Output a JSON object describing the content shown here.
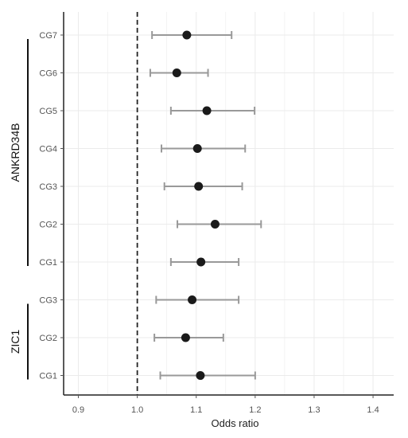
{
  "chart_data": {
    "type": "forest",
    "xlabel": "Odds ratio",
    "xlim": [
      0.875,
      1.435
    ],
    "xticks": [
      "0.9",
      "1.0",
      "1.1",
      "1.2",
      "1.3",
      "1.4"
    ],
    "xtick_values": [
      0.9,
      1.0,
      1.1,
      1.2,
      1.3,
      1.4
    ],
    "reference_line": 1.0,
    "grid": true,
    "rows": [
      {
        "label": "CG7",
        "group": "ANKRD34B",
        "or": 1.084,
        "lower": 1.025,
        "upper": 1.16
      },
      {
        "label": "CG6",
        "group": "ANKRD34B",
        "or": 1.067,
        "lower": 1.022,
        "upper": 1.12
      },
      {
        "label": "CG5",
        "group": "ANKRD34B",
        "or": 1.118,
        "lower": 1.057,
        "upper": 1.199
      },
      {
        "label": "CG4",
        "group": "ANKRD34B",
        "or": 1.102,
        "lower": 1.041,
        "upper": 1.183
      },
      {
        "label": "CG3",
        "group": "ANKRD34B",
        "or": 1.104,
        "lower": 1.046,
        "upper": 1.178
      },
      {
        "label": "CG2",
        "group": "ANKRD34B",
        "or": 1.132,
        "lower": 1.068,
        "upper": 1.21
      },
      {
        "label": "CG1",
        "group": "ANKRD34B",
        "or": 1.108,
        "lower": 1.057,
        "upper": 1.172
      },
      {
        "label": "CG3",
        "group": "ZIC1",
        "or": 1.093,
        "lower": 1.032,
        "upper": 1.172
      },
      {
        "label": "CG2",
        "group": "ZIC1",
        "or": 1.082,
        "lower": 1.029,
        "upper": 1.146
      },
      {
        "label": "CG1",
        "group": "ZIC1",
        "or": 1.107,
        "lower": 1.039,
        "upper": 1.2
      }
    ],
    "groups": [
      {
        "name": "ANKRD34B",
        "first_row": 0,
        "last_row": 6
      },
      {
        "name": "ZIC1",
        "first_row": 7,
        "last_row": 9
      }
    ],
    "colors": {
      "point": "#1a1a1a",
      "errorbar": "#999999",
      "grid": "#ebebeb",
      "axis": "#222222",
      "reference": "#222222"
    }
  }
}
